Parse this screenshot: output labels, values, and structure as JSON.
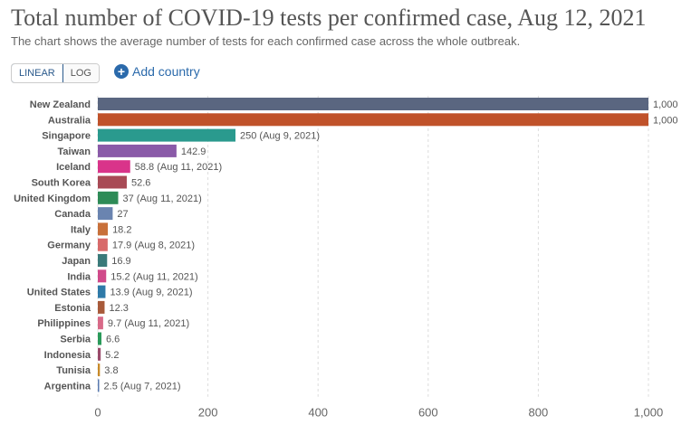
{
  "header": {
    "title": "Total number of COVID-19 tests per confirmed case, Aug 12, 2021",
    "subtitle": "The chart shows the average number of tests for each confirmed case across the whole outbreak."
  },
  "controls": {
    "linear_label": "LINEAR",
    "log_label": "LOG",
    "add_country_label": "Add country",
    "plus_symbol": "+"
  },
  "chart_data": {
    "type": "bar",
    "orientation": "horizontal",
    "categories": [
      "New Zealand",
      "Australia",
      "Singapore",
      "Taiwan",
      "Iceland",
      "South Korea",
      "United Kingdom",
      "Canada",
      "Italy",
      "Germany",
      "Japan",
      "India",
      "United States",
      "Estonia",
      "Philippines",
      "Serbia",
      "Indonesia",
      "Tunisia",
      "Argentina"
    ],
    "values": [
      1000,
      1000,
      250,
      142.9,
      58.8,
      52.6,
      37,
      27,
      18.2,
      17.9,
      16.9,
      15.2,
      13.9,
      12.3,
      9.7,
      6.6,
      5.2,
      3.8,
      2.5
    ],
    "value_labels": [
      "1,000",
      "1,000",
      "250 (Aug 9, 2021)",
      "142.9",
      "58.8 (Aug 11, 2021)",
      "52.6",
      "37 (Aug 11, 2021)",
      "27",
      "18.2",
      "17.9 (Aug 8, 2021)",
      "16.9",
      "15.2 (Aug 11, 2021)",
      "13.9 (Aug 9, 2021)",
      "12.3",
      "9.7 (Aug 11, 2021)",
      "6.6",
      "5.2",
      "3.8",
      "2.5 (Aug 7, 2021)"
    ],
    "colors": [
      "#5a6680",
      "#c0522a",
      "#2a9a8e",
      "#8a5aa8",
      "#d9348a",
      "#a84a55",
      "#2e8b57",
      "#6a84b0",
      "#c8703a",
      "#d86a6a",
      "#3a7a7a",
      "#d04a8a",
      "#2e7aa8",
      "#a85a3a",
      "#d86a88",
      "#2a9a5a",
      "#9a4a6a",
      "#c88a2a",
      "#5a7ab0"
    ],
    "xlim": [
      0,
      1000
    ],
    "xticks": [
      0,
      200,
      400,
      600,
      800,
      1000
    ],
    "xtick_labels": [
      "0",
      "200",
      "400",
      "600",
      "800",
      "1,000"
    ],
    "grid": true,
    "title": "Total number of COVID-19 tests per confirmed case, Aug 12, 2021",
    "xlabel": "",
    "ylabel": ""
  }
}
